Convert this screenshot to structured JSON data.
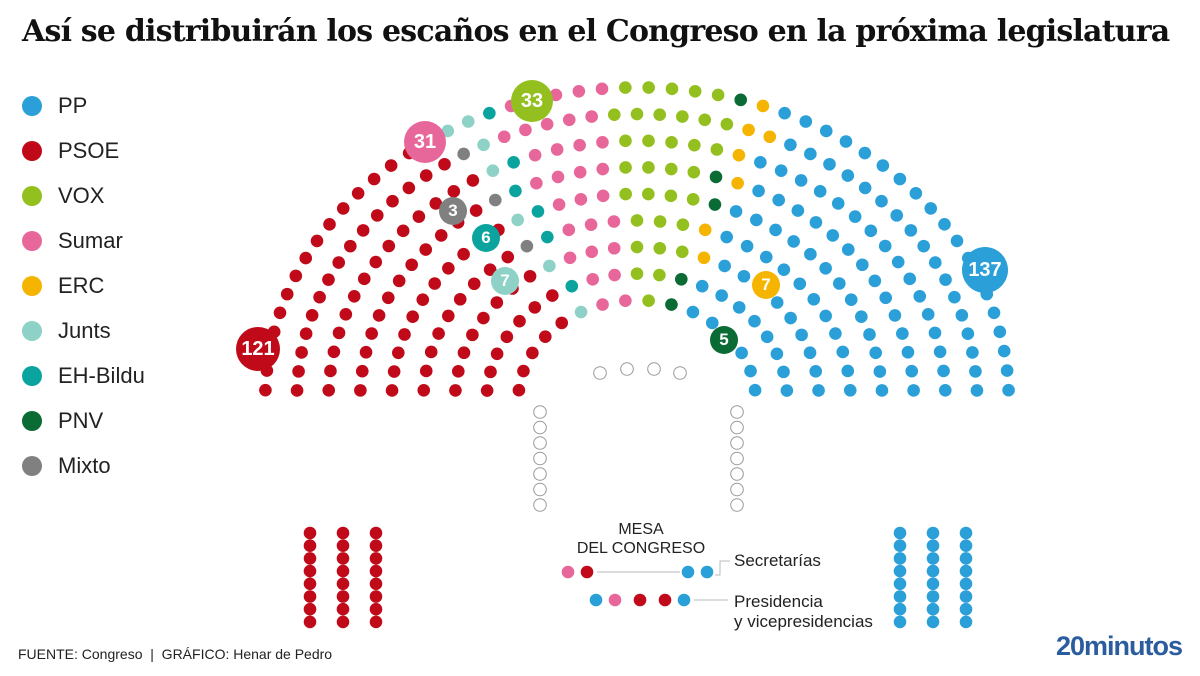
{
  "title": "Así se distribuirán los escaños en el Congreso en la próxima legislatura",
  "chart_data": {
    "type": "parliament",
    "title": "Así se distribuirán los escaños en el Congreso en la próxima legislatura",
    "series": [
      {
        "name": "PP",
        "seats": 137,
        "color": "#2a9fd8"
      },
      {
        "name": "PSOE",
        "seats": 121,
        "color": "#c00a1a"
      },
      {
        "name": "VOX",
        "seats": 33,
        "color": "#93c01f"
      },
      {
        "name": "Sumar",
        "seats": 31,
        "color": "#e8679a"
      },
      {
        "name": "ERC",
        "seats": 7,
        "color": "#f5b400"
      },
      {
        "name": "Junts",
        "seats": 7,
        "color": "#8ed1c6"
      },
      {
        "name": "EH-Bildu",
        "seats": 6,
        "color": "#0aa39e"
      },
      {
        "name": "PNV",
        "seats": 5,
        "color": "#0b6b35"
      },
      {
        "name": "Mixto",
        "seats": 3,
        "color": "#808080"
      }
    ],
    "legend": "left"
  },
  "mesa": {
    "title_line1": "MESA",
    "title_line2": "DEL CONGRESO",
    "secretarias_label": "Secretarías",
    "secretarias": [
      "Sumar",
      "PSOE",
      "PP",
      "PP"
    ],
    "presidencia_label_1": "Presidencia",
    "presidencia_label_2": "y vicepresidencias",
    "presidencia": [
      "PP",
      "Sumar",
      "PSOE",
      "PSOE",
      "PP"
    ]
  },
  "footer": "FUENTE: Congreso  |  GRÁFICO: Henar de Pedro",
  "logo": "20minutos"
}
